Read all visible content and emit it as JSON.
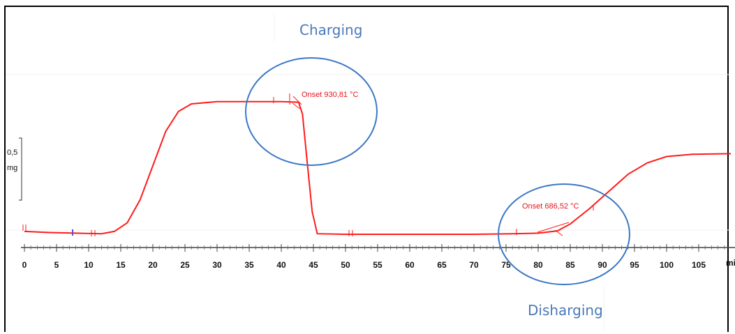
{
  "chart_data": {
    "type": "line",
    "xlabel": "mi",
    "xlim": [
      0,
      110
    ],
    "x_ticks": [
      "0",
      "5",
      "10",
      "15",
      "20",
      "25",
      "30",
      "35",
      "40",
      "45",
      "50",
      "55",
      "60",
      "65",
      "70",
      "75",
      "80",
      "85",
      "90",
      "95",
      "100",
      "105"
    ],
    "scale_bar": {
      "value": "0,5",
      "unit": "mg"
    },
    "grid": false,
    "colors": {
      "curve": "#ff1a1a",
      "circle": "#3b78c4",
      "axis": "#444444"
    },
    "series": [
      {
        "values": [
          [
            0,
            0.05
          ],
          [
            4,
            0.03
          ],
          [
            8,
            0.02
          ],
          [
            12,
            0.01
          ],
          [
            14,
            0.05
          ],
          [
            16,
            0.2
          ],
          [
            18,
            0.6
          ],
          [
            20,
            1.2
          ],
          [
            22,
            1.8
          ],
          [
            24,
            2.15
          ],
          [
            26,
            2.28
          ],
          [
            30,
            2.32
          ],
          [
            35,
            2.32
          ],
          [
            40,
            2.32
          ],
          [
            42.7,
            2.31
          ],
          [
            43.3,
            2.1
          ],
          [
            44,
            1.3
          ],
          [
            44.8,
            0.4
          ],
          [
            45.6,
            0.01
          ],
          [
            50,
            0.0
          ],
          [
            60,
            0.0
          ],
          [
            70,
            0.0
          ],
          [
            76,
            0.01
          ],
          [
            80,
            0.02
          ],
          [
            83,
            0.06
          ],
          [
            85,
            0.18
          ],
          [
            88,
            0.45
          ],
          [
            91,
            0.75
          ],
          [
            94,
            1.05
          ],
          [
            97,
            1.25
          ],
          [
            100,
            1.36
          ],
          [
            104,
            1.4
          ],
          [
            110,
            1.41
          ]
        ]
      }
    ],
    "annotations": {
      "charging": "Charging",
      "discharging": "Disharging",
      "onset1": "Onset 930,81 °C",
      "onset2": "Onset 686,52 °C"
    }
  }
}
